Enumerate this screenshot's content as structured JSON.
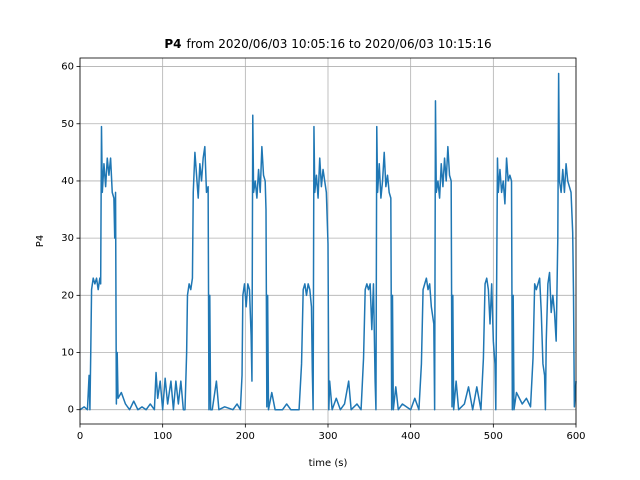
{
  "chart_data": {
    "type": "line",
    "title_parts": [
      "P4",
      "from 2020/06/03 10:05:16 to 2020/06/03 10:15:16"
    ],
    "x_label": "time (s)",
    "y_label": "P4",
    "color": "#1f77b4",
    "grid": true,
    "xlim": [
      0,
      600
    ],
    "ylim": [
      -2.5,
      61.5
    ],
    "xticks": [
      0,
      100,
      200,
      300,
      400,
      500,
      600
    ],
    "yticks": [
      0,
      10,
      20,
      30,
      40,
      50,
      60
    ],
    "x": [
      0,
      5,
      9,
      11,
      12,
      13,
      14,
      16,
      18,
      20,
      22,
      24,
      25,
      26,
      27,
      29,
      31,
      33,
      35,
      37,
      39,
      41,
      42,
      43,
      44,
      45,
      46,
      50,
      55,
      60,
      65,
      70,
      75,
      80,
      85,
      90,
      92,
      94,
      97,
      100,
      103,
      106,
      110,
      113,
      116,
      119,
      122,
      125,
      127,
      129,
      130,
      132,
      134,
      136,
      137,
      139,
      141,
      143,
      145,
      147,
      149,
      151,
      153,
      155,
      156,
      157,
      158,
      160,
      165,
      168,
      175,
      185,
      190,
      194,
      196,
      197,
      199,
      201,
      203,
      205,
      207,
      208,
      209,
      210,
      212,
      214,
      216,
      218,
      220,
      222,
      224,
      225,
      226,
      227,
      228,
      232,
      236,
      245,
      250,
      255,
      265,
      268,
      270,
      272,
      274,
      276,
      278,
      280,
      281,
      282,
      283,
      284,
      286,
      288,
      290,
      292,
      294,
      296,
      298,
      300,
      301,
      302,
      305,
      310,
      315,
      320,
      325,
      328,
      335,
      340,
      343,
      345,
      347,
      349,
      351,
      353,
      355,
      357,
      358,
      359,
      360,
      362,
      364,
      366,
      368,
      370,
      372,
      374,
      376,
      377,
      378,
      379,
      382,
      385,
      390,
      400,
      405,
      410,
      413,
      415,
      417,
      419,
      421,
      423,
      425,
      428,
      429,
      430,
      431,
      433,
      435,
      437,
      439,
      441,
      443,
      445,
      447,
      449,
      450,
      451,
      452,
      455,
      458,
      465,
      470,
      475,
      480,
      485,
      488,
      490,
      492,
      494,
      496,
      498,
      500,
      502,
      503,
      505,
      506,
      508,
      510,
      512,
      514,
      516,
      518,
      520,
      522,
      523,
      524,
      525,
      528,
      535,
      540,
      545,
      548,
      550,
      552,
      554,
      556,
      558,
      560,
      562,
      563,
      564,
      566,
      568,
      570,
      572,
      574,
      576,
      578,
      579,
      580,
      582,
      584,
      586,
      588,
      590,
      592,
      594,
      596,
      597,
      598,
      600
    ],
    "values": [
      0,
      0.5,
      0,
      6,
      0,
      10,
      21,
      23,
      22,
      23,
      21,
      23,
      22,
      49.5,
      38,
      43,
      39,
      44,
      41,
      44,
      38,
      37,
      30,
      38,
      1,
      10,
      2,
      3,
      1,
      0,
      1.5,
      0,
      0.5,
      0,
      1,
      0,
      6.5,
      2,
      5,
      0,
      5.5,
      1,
      5,
      0,
      5,
      1,
      5,
      0,
      0,
      10,
      20,
      22,
      21,
      23,
      38,
      45,
      41,
      37,
      43,
      40,
      44,
      46,
      38,
      39,
      0,
      20,
      0,
      0,
      5,
      0,
      0.5,
      0,
      1,
      0,
      6,
      20,
      22,
      18,
      22,
      21,
      13,
      5,
      51.5,
      38,
      40,
      37,
      42,
      38,
      46,
      41,
      40,
      35,
      0.5,
      20,
      0,
      3,
      0,
      0,
      1,
      0,
      0,
      8,
      21,
      22,
      20,
      22,
      21,
      18,
      7,
      0,
      49.5,
      38,
      41,
      37,
      44,
      39,
      42,
      40,
      38,
      29,
      0,
      5,
      0,
      2,
      0,
      1,
      5,
      0,
      1,
      0,
      9,
      21,
      22,
      21,
      22,
      14,
      22,
      5,
      0,
      49.5,
      38,
      43,
      37,
      40,
      45,
      39,
      41,
      38,
      37,
      0,
      20,
      0,
      4,
      0,
      1,
      0,
      2,
      0,
      8,
      21,
      22,
      23,
      21,
      22,
      18,
      15,
      0,
      54,
      38,
      40,
      37,
      43,
      39,
      44,
      40,
      46,
      41,
      40,
      0.5,
      20,
      0,
      5,
      0,
      1,
      4,
      0,
      4,
      0,
      9,
      22,
      23,
      21,
      15,
      22,
      12,
      8,
      0,
      44,
      38,
      42,
      38,
      40,
      36,
      44,
      40,
      41,
      40,
      0,
      20,
      0,
      3,
      1,
      2,
      0.5,
      9,
      22,
      21,
      22,
      23,
      17,
      8,
      6,
      0,
      12,
      22,
      24,
      17,
      20,
      17,
      12,
      30,
      58.8,
      40,
      38,
      42,
      38,
      43,
      40,
      39,
      38,
      31,
      20,
      0.5,
      5
    ]
  }
}
